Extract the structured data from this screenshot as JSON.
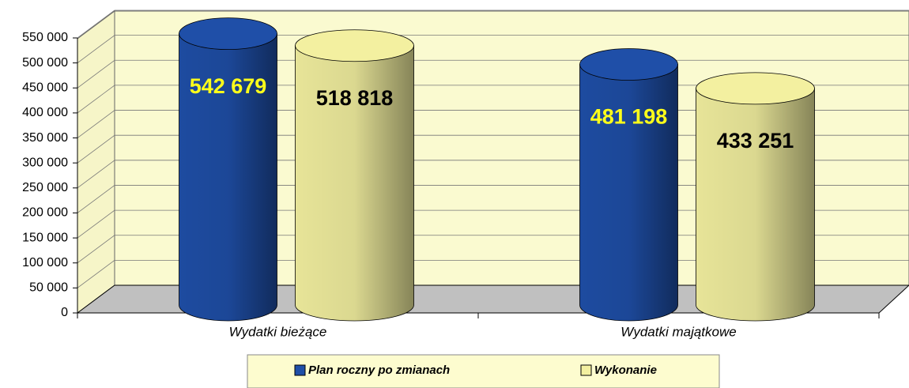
{
  "chart_data": {
    "type": "cylinder",
    "categories": [
      "Wydatki bieżące",
      "Wydatki majątkowe"
    ],
    "series": [
      {
        "name": "Plan roczny po zmianach",
        "color": "#1f4fa8",
        "values": [
          542679,
          481198
        ],
        "value_labels": [
          "542 679",
          "481 198"
        ],
        "label_color": "#ffff1a"
      },
      {
        "name": "Wykonanie",
        "color": "#f3f0a0",
        "values": [
          518818,
          433251
        ],
        "value_labels": [
          "518 818",
          "433 251"
        ],
        "label_color": "#000000"
      }
    ],
    "ylim": [
      0,
      550000
    ],
    "yticks": [
      0,
      {
        "value": 50000,
        "label": "50 000"
      },
      {
        "value": 100000,
        "label": "100 000"
      },
      {
        "value": 150000,
        "label": "150 000"
      },
      {
        "value": 200000,
        "label": "200 000"
      },
      {
        "value": 250000,
        "label": "250 000"
      },
      {
        "value": 300000,
        "label": "300 000"
      },
      {
        "value": 350000,
        "label": "350 000"
      },
      {
        "value": 400000,
        "label": "400 000"
      },
      {
        "value": 450000,
        "label": "450 000"
      },
      {
        "value": 500000,
        "label": "500 000"
      },
      {
        "value": 550000,
        "label": "550 000"
      }
    ],
    "grid": true
  }
}
